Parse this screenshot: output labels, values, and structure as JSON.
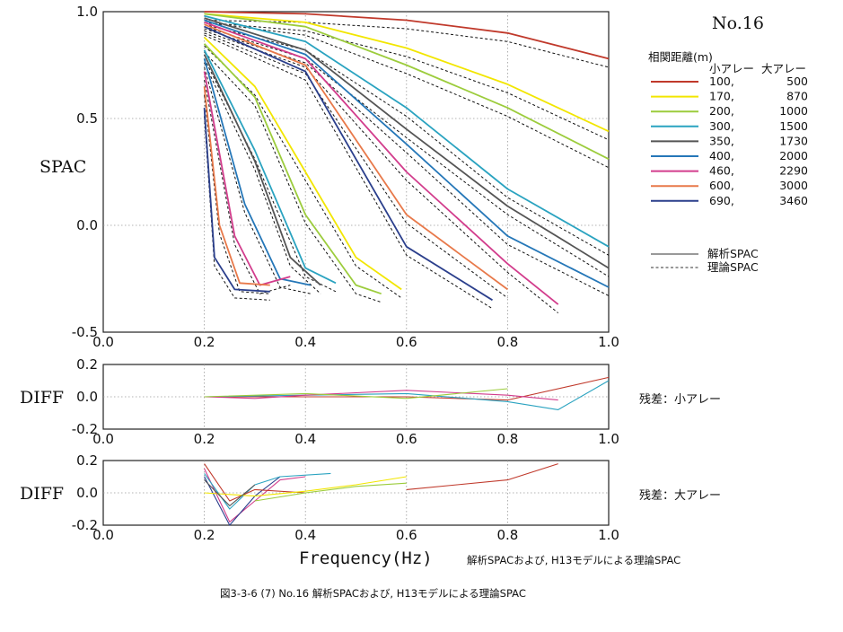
{
  "station": "No.16",
  "figure_caption": "図3-3-6 (7) No.16 解析SPACおよび, H13モデルによる理論SPAC",
  "subtitle": "解析SPACおよび, H13モデルによる理論SPAC",
  "legend": {
    "title": "相関距離(m)",
    "col_small": "小アレー",
    "col_large": "大アレー",
    "entries": [
      {
        "small": "100,",
        "large": "500",
        "color": "#c0392b"
      },
      {
        "small": "170,",
        "large": "870",
        "color": "#f2e600"
      },
      {
        "small": "200,",
        "large": "1000",
        "color": "#9ccc3c"
      },
      {
        "small": "300,",
        "large": "1500",
        "color": "#2aa3c0"
      },
      {
        "small": "350,",
        "large": "1730",
        "color": "#555555"
      },
      {
        "small": "400,",
        "large": "2000",
        "color": "#2577b8"
      },
      {
        "small": "460,",
        "large": "2290",
        "color": "#d23c8c"
      },
      {
        "small": "600,",
        "large": "3000",
        "color": "#e8794a"
      },
      {
        "small": "690,",
        "large": "3460",
        "color": "#2b3f8c"
      }
    ],
    "analysis_label": "解析SPAC",
    "theory_label": "理論SPAC"
  },
  "residual_labels": {
    "small": "残差：小アレー",
    "large": "残差：大アレー"
  },
  "chart_data": [
    {
      "type": "line",
      "panel": "spac",
      "ylabel": "SPAC",
      "xlim": [
        0,
        1
      ],
      "ylim": [
        -0.5,
        1
      ],
      "xticks": [
        "0.0",
        "0.2",
        "0.4",
        "0.6",
        "0.8",
        "1.0"
      ],
      "yticks": [
        "-0.5",
        "0.0",
        "0.5",
        "1.0"
      ],
      "grid": true,
      "series": [
        {
          "color": "#c0392b",
          "x": [
            0.2,
            0.4,
            0.6,
            0.8,
            1.0
          ],
          "y": [
            1.0,
            0.99,
            0.96,
            0.9,
            0.78
          ]
        },
        {
          "color": "#f2e600",
          "x": [
            0.2,
            0.4,
            0.6,
            0.8,
            1.0
          ],
          "y": [
            0.99,
            0.95,
            0.83,
            0.66,
            0.44
          ]
        },
        {
          "color": "#9ccc3c",
          "x": [
            0.2,
            0.4,
            0.6,
            0.8,
            1.0
          ],
          "y": [
            0.99,
            0.93,
            0.75,
            0.55,
            0.31
          ]
        },
        {
          "color": "#2aa3c0",
          "x": [
            0.2,
            0.4,
            0.6,
            0.8,
            1.0
          ],
          "y": [
            0.98,
            0.86,
            0.55,
            0.17,
            -0.1
          ]
        },
        {
          "color": "#555555",
          "x": [
            0.2,
            0.4,
            0.6,
            0.8,
            1.0
          ],
          "y": [
            0.97,
            0.82,
            0.45,
            0.09,
            -0.2
          ]
        },
        {
          "color": "#2577b8",
          "x": [
            0.2,
            0.4,
            0.6,
            0.8,
            1.0
          ],
          "y": [
            0.96,
            0.8,
            0.38,
            -0.05,
            -0.29
          ]
        },
        {
          "color": "#d23c8c",
          "x": [
            0.2,
            0.4,
            0.6,
            0.8,
            0.9
          ],
          "y": [
            0.95,
            0.78,
            0.25,
            -0.18,
            -0.37
          ]
        },
        {
          "color": "#e8794a",
          "x": [
            0.2,
            0.4,
            0.6,
            0.8
          ],
          "y": [
            0.94,
            0.75,
            0.05,
            -0.3
          ]
        },
        {
          "color": "#2b3f8c",
          "x": [
            0.2,
            0.4,
            0.6,
            0.77
          ],
          "y": [
            0.93,
            0.72,
            -0.1,
            -0.35
          ]
        },
        {
          "color": "#f2e600",
          "x": [
            0.2,
            0.3,
            0.4,
            0.5,
            0.59
          ],
          "y": [
            0.88,
            0.65,
            0.25,
            -0.15,
            -0.3
          ]
        },
        {
          "color": "#9ccc3c",
          "x": [
            0.2,
            0.3,
            0.4,
            0.5,
            0.55
          ],
          "y": [
            0.85,
            0.6,
            0.05,
            -0.28,
            -0.32
          ]
        },
        {
          "color": "#2aa3c0",
          "x": [
            0.2,
            0.3,
            0.4,
            0.46
          ],
          "y": [
            0.82,
            0.35,
            -0.2,
            -0.27
          ]
        },
        {
          "color": "#555555",
          "x": [
            0.2,
            0.3,
            0.37,
            0.43
          ],
          "y": [
            0.8,
            0.3,
            -0.15,
            -0.28
          ]
        },
        {
          "color": "#2577b8",
          "x": [
            0.2,
            0.28,
            0.35,
            0.41
          ],
          "y": [
            0.78,
            0.1,
            -0.25,
            -0.28
          ]
        },
        {
          "color": "#d23c8c",
          "x": [
            0.2,
            0.26,
            0.31,
            0.37
          ],
          "y": [
            0.72,
            -0.05,
            -0.28,
            -0.24
          ]
        },
        {
          "color": "#e8794a",
          "x": [
            0.2,
            0.23,
            0.27,
            0.33
          ],
          "y": [
            0.65,
            0.0,
            -0.27,
            -0.28
          ]
        },
        {
          "color": "#2b3f8c",
          "x": [
            0.2,
            0.22,
            0.26,
            0.33
          ],
          "y": [
            0.55,
            -0.15,
            -0.3,
            -0.31
          ]
        }
      ]
    },
    {
      "type": "line",
      "panel": "diff-small",
      "ylabel": "DIFF",
      "xlim": [
        0,
        1
      ],
      "ylim": [
        -0.2,
        0.2
      ],
      "xticks": [
        "0.0",
        "0.2",
        "0.4",
        "0.6",
        "0.8",
        "1.0"
      ],
      "yticks": [
        "-0.2",
        "0.0",
        "0.2"
      ],
      "series": [
        {
          "color": "#c0392b",
          "x": [
            0.2,
            0.4,
            0.6,
            0.8,
            1.0
          ],
          "y": [
            0.0,
            0.0,
            0.0,
            -0.02,
            0.12
          ]
        },
        {
          "color": "#2aa3c0",
          "x": [
            0.2,
            0.4,
            0.6,
            0.8,
            0.9,
            1.0
          ],
          "y": [
            0.0,
            0.01,
            0.02,
            -0.03,
            -0.08,
            0.1
          ]
        },
        {
          "color": "#d23c8c",
          "x": [
            0.2,
            0.3,
            0.4,
            0.6,
            0.8,
            0.9
          ],
          "y": [
            0.0,
            -0.01,
            0.01,
            0.04,
            0.01,
            -0.02
          ]
        },
        {
          "color": "#9ccc3c",
          "x": [
            0.2,
            0.4,
            0.6,
            0.8
          ],
          "y": [
            0.0,
            0.02,
            -0.01,
            0.05
          ]
        }
      ]
    },
    {
      "type": "line",
      "panel": "diff-large",
      "ylabel": "DIFF",
      "xlim": [
        0,
        1
      ],
      "ylim": [
        -0.2,
        0.2
      ],
      "xticks": [
        "0.0",
        "0.2",
        "0.4",
        "0.6",
        "0.8",
        "1.0"
      ],
      "yticks": [
        "-0.2",
        "0.0",
        "0.2"
      ],
      "xlabel": "Frequency(Hz)",
      "series": [
        {
          "color": "#d23c8c",
          "x": [
            0.2,
            0.25,
            0.3,
            0.35,
            0.4
          ],
          "y": [
            0.15,
            -0.18,
            -0.05,
            0.08,
            0.1
          ]
        },
        {
          "color": "#2b3f8c",
          "x": [
            0.2,
            0.25,
            0.3,
            0.35
          ],
          "y": [
            0.1,
            -0.2,
            -0.02,
            0.1
          ]
        },
        {
          "color": "#2aa3c0",
          "x": [
            0.2,
            0.25,
            0.3,
            0.35,
            0.45
          ],
          "y": [
            0.12,
            -0.1,
            0.05,
            0.1,
            0.12
          ]
        },
        {
          "color": "#c0392b",
          "x": [
            0.2,
            0.25,
            0.3,
            0.4
          ],
          "y": [
            0.18,
            -0.05,
            0.02,
            0.0
          ]
        },
        {
          "color": "#f2e600",
          "x": [
            0.2,
            0.3,
            0.4,
            0.5,
            0.6
          ],
          "y": [
            0.0,
            -0.02,
            0.01,
            0.05,
            0.1
          ]
        },
        {
          "color": "#555555",
          "x": [
            0.2,
            0.25,
            0.3
          ],
          "y": [
            0.08,
            -0.08,
            0.05
          ]
        },
        {
          "color": "#9ccc3c",
          "x": [
            0.3,
            0.4,
            0.5,
            0.6
          ],
          "y": [
            -0.05,
            0.0,
            0.04,
            0.06
          ]
        },
        {
          "color": "#c0392b",
          "x": [
            0.6,
            0.7,
            0.8,
            0.9
          ],
          "y": [
            0.02,
            0.05,
            0.08,
            0.18
          ]
        }
      ]
    }
  ]
}
